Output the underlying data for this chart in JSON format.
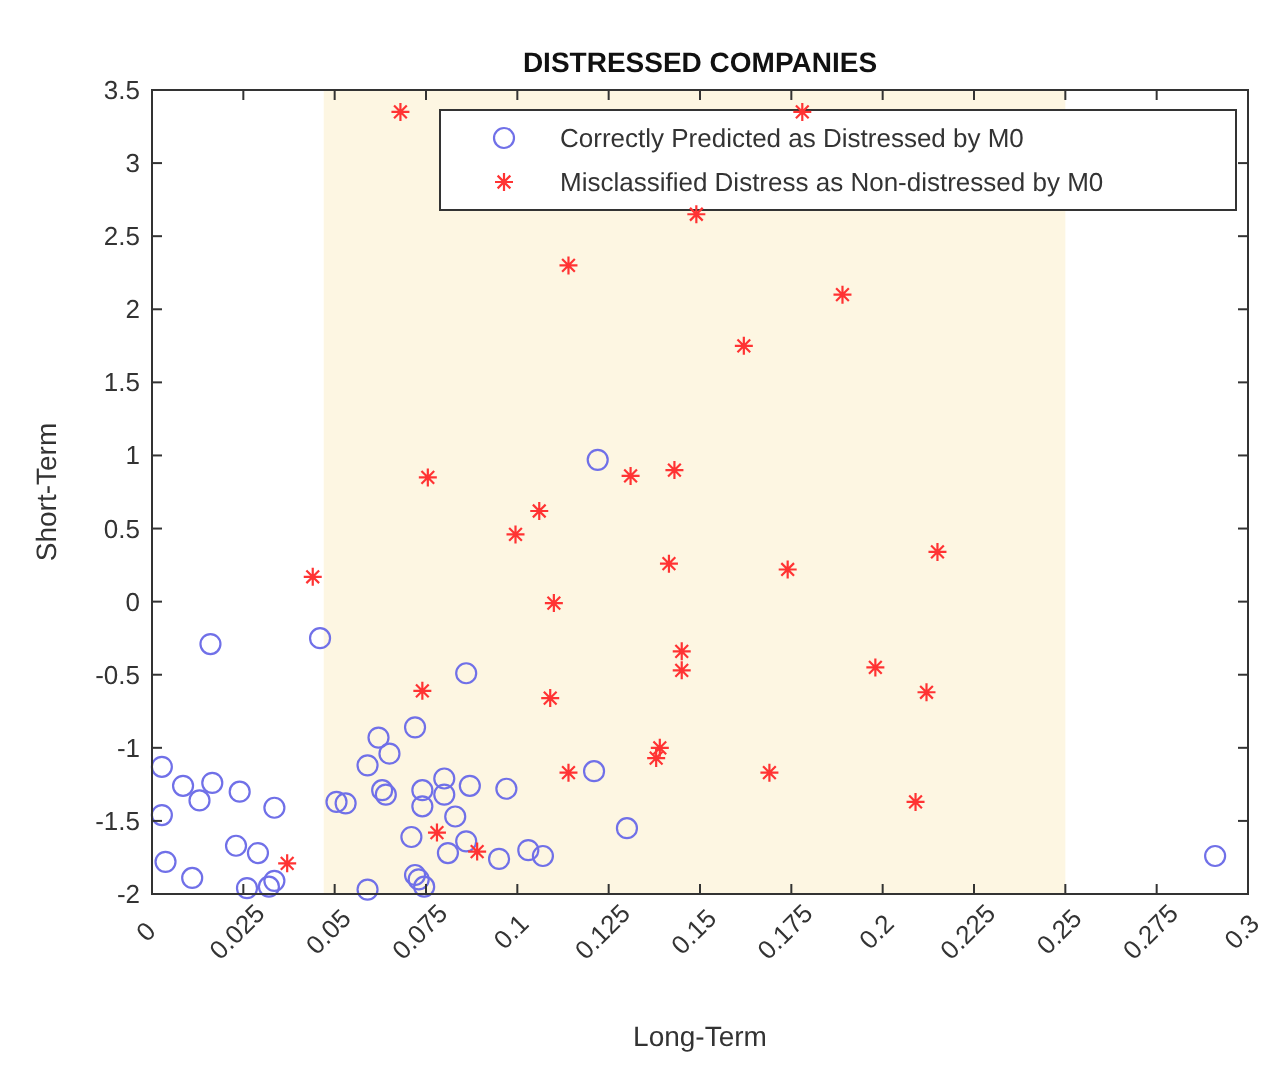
{
  "chart_data": {
    "type": "scatter",
    "title": "DISTRESSED COMPANIES",
    "xlabel": "Long-Term",
    "ylabel": "Short-Term",
    "xlim": [
      0,
      0.3
    ],
    "ylim": [
      -2,
      3.5
    ],
    "xticks": [
      0,
      0.025,
      0.05,
      0.075,
      0.1,
      0.125,
      0.15,
      0.175,
      0.2,
      0.225,
      0.25,
      0.275,
      0.3
    ],
    "yticks": [
      -2,
      -1.5,
      -1,
      -0.5,
      0,
      0.5,
      1,
      1.5,
      2,
      2.5,
      3,
      3.5
    ],
    "grid": false,
    "legend": "top right",
    "bands": [
      {
        "axis": "x",
        "from": 0.047,
        "to": 0.25,
        "color": "#fdf6e2"
      }
    ],
    "series": [
      {
        "name": "Correctly Predicted as Distressed by M0",
        "color": "#7070e8",
        "marker": "circle",
        "x": [
          0.016,
          0.046,
          0.086,
          0.072,
          0.062,
          0.065,
          0.059,
          0.0027,
          0.121,
          0.0085,
          0.0165,
          0.013,
          0.024,
          0.0335,
          0.0505,
          0.053,
          0.063,
          0.064,
          0.074,
          0.074,
          0.08,
          0.08,
          0.087,
          0.097,
          0.083,
          0.0027,
          0.071,
          0.086,
          0.081,
          0.095,
          0.103,
          0.107,
          0.023,
          0.029,
          0.0037,
          0.011,
          0.072,
          0.073,
          0.0745,
          0.026,
          0.032,
          0.0335,
          0.059,
          0.122,
          0.13,
          0.291
        ],
        "values": [
          -0.29,
          -0.25,
          -0.49,
          -0.86,
          -0.93,
          -1.04,
          -1.12,
          -1.13,
          -1.16,
          -1.26,
          -1.24,
          -1.36,
          -1.3,
          -1.41,
          -1.37,
          -1.38,
          -1.29,
          -1.32,
          -1.29,
          -1.4,
          -1.21,
          -1.32,
          -1.26,
          -1.28,
          -1.47,
          -1.46,
          -1.61,
          -1.64,
          -1.72,
          -1.76,
          -1.7,
          -1.74,
          -1.67,
          -1.72,
          -1.78,
          -1.89,
          -1.87,
          -1.9,
          -1.95,
          -1.96,
          -1.95,
          -1.91,
          -1.97,
          0.97,
          -1.55,
          -1.74
        ]
      },
      {
        "name": "Misclassified Distress as Non-distressed by M0",
        "color": "#ff3333",
        "marker": "cross",
        "x": [
          0.068,
          0.178,
          0.149,
          0.114,
          0.189,
          0.162,
          0.0755,
          0.131,
          0.143,
          0.106,
          0.0995,
          0.1415,
          0.174,
          0.215,
          0.044,
          0.11,
          0.145,
          0.145,
          0.198,
          0.212,
          0.074,
          0.109,
          0.139,
          0.138,
          0.169,
          0.114,
          0.209,
          0.078,
          0.089,
          0.037
        ],
        "values": [
          3.35,
          3.35,
          2.65,
          2.3,
          2.1,
          1.75,
          0.85,
          0.86,
          0.9,
          0.62,
          0.46,
          0.26,
          0.22,
          0.34,
          0.17,
          -0.01,
          -0.34,
          -0.47,
          -0.45,
          -0.62,
          -0.61,
          -0.66,
          -1.0,
          -1.07,
          -1.17,
          -1.17,
          -1.37,
          -1.58,
          -1.71,
          -1.79
        ]
      }
    ]
  }
}
